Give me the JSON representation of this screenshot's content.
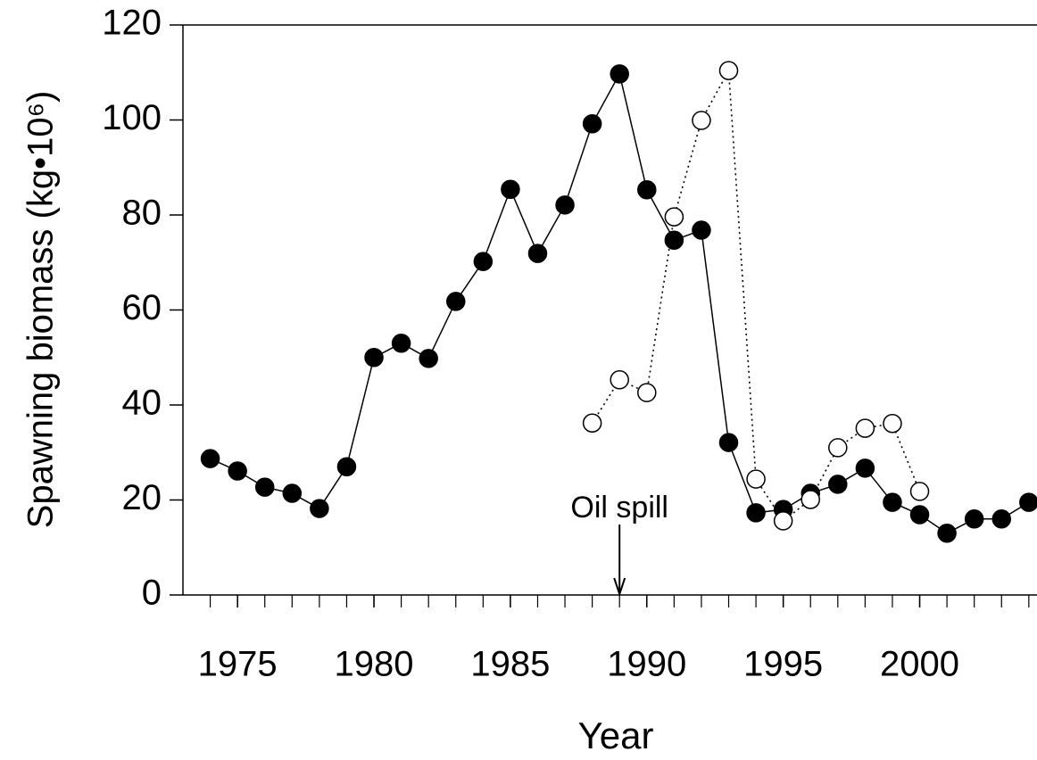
{
  "chart_data": {
    "type": "line",
    "ylabel": "Spawning biomass (kg•10⁶)",
    "xlabel": "Year",
    "x": [
      1974,
      1975,
      1976,
      1977,
      1978,
      1979,
      1980,
      1981,
      1982,
      1983,
      1984,
      1985,
      1986,
      1987,
      1988,
      1989,
      1990,
      1991,
      1992,
      1993,
      1994,
      1995,
      1996,
      1997,
      1998,
      1999,
      2000,
      2001,
      2002,
      2003,
      2004
    ],
    "series": [
      {
        "color": "#000000",
        "marker_fill": "#000000",
        "line_style": "solid",
        "values": [
          28.7,
          26.1,
          22.7,
          21.4,
          18.2,
          27.0,
          50.0,
          53.0,
          49.8,
          61.8,
          70.2,
          85.4,
          71.9,
          82.1,
          99.2,
          109.7,
          85.3,
          74.7,
          76.8,
          32.1,
          17.3,
          18.0,
          21.4,
          23.3,
          26.7,
          19.5,
          16.9,
          13.0,
          16.0,
          16.0,
          19.5
        ]
      },
      {
        "color": "#000000",
        "marker_fill": "#ffffff",
        "line_style": "dotted",
        "values": [
          null,
          null,
          null,
          null,
          null,
          null,
          null,
          null,
          null,
          null,
          null,
          null,
          null,
          null,
          36.2,
          45.3,
          42.6,
          79.6,
          99.9,
          110.4,
          24.4,
          15.6,
          20.1,
          31.0,
          35.1,
          36.1,
          21.8,
          null,
          null,
          null,
          null
        ]
      }
    ],
    "annotations": [
      {
        "text": "Oil spill",
        "x": 1989
      }
    ],
    "xlim": [
      1973,
      2004.3
    ],
    "xticks": [
      1975,
      1980,
      1985,
      1990,
      1995,
      2000
    ],
    "xminorticks": [
      1974,
      1975,
      1976,
      1977,
      1978,
      1979,
      1980,
      1981,
      1982,
      1983,
      1984,
      1985,
      1986,
      1987,
      1988,
      1989,
      1990,
      1991,
      1992,
      1993,
      1994,
      1995,
      1996,
      1997,
      1998,
      1999,
      2000,
      2001,
      2002,
      2003,
      2004
    ],
    "ylim": [
      0,
      120
    ],
    "yticks": [
      0,
      20,
      40,
      60,
      80,
      100,
      120
    ],
    "grid": false
  }
}
